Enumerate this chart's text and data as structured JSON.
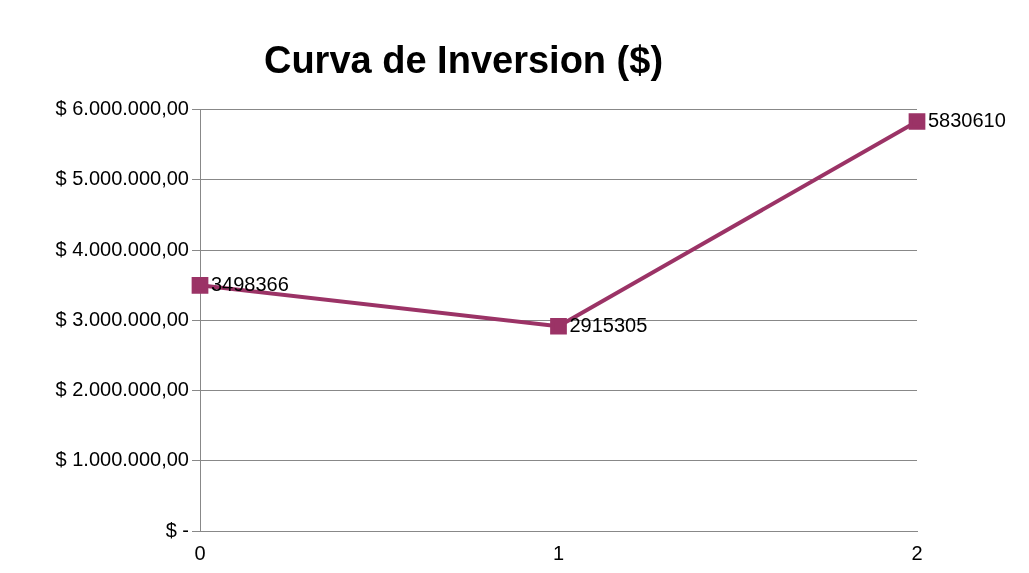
{
  "chart_data": {
    "type": "line",
    "title": "Curva de Inversion ($)",
    "x": [
      0,
      1,
      2
    ],
    "series": [
      {
        "color": "#9b3366",
        "values": [
          3498366,
          2915305,
          5830610
        ]
      }
    ],
    "xlim": [
      0,
      2
    ],
    "xticks": [
      0,
      1,
      2
    ],
    "ylim": [
      0,
      6000000
    ],
    "yticks": [
      {
        "value": 0,
        "label": "$ -"
      },
      {
        "value": 1000000,
        "label": "$ 1.000.000,00"
      },
      {
        "value": 2000000,
        "label": "$ 2.000.000,00"
      },
      {
        "value": 3000000,
        "label": "$ 3.000.000,00"
      },
      {
        "value": 4000000,
        "label": "$ 4.000.000,00"
      },
      {
        "value": 5000000,
        "label": "$ 5.000.000,00"
      },
      {
        "value": 6000000,
        "label": "$ 6.000.000,00"
      }
    ],
    "grid": "y",
    "legend": false,
    "marker": "square",
    "line_style": "solid",
    "data_labels": true
  }
}
